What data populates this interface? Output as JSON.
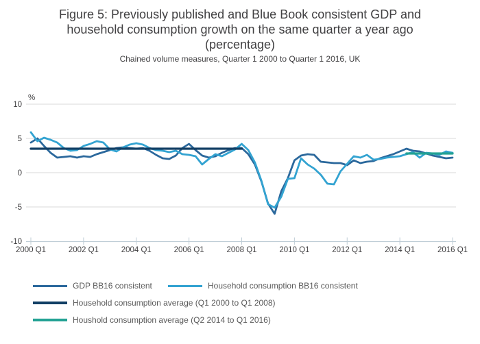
{
  "chart_data": {
    "type": "line",
    "title": "Figure 5: Previously published and Blue Book consistent GDP and household consumption growth on the same quarter a year ago (percentage)",
    "title_lines": [
      "Figure 5: Previously published and Blue Book consistent GDP and",
      "household consumption growth on the same quarter a year ago",
      "(percentage)"
    ],
    "subtitle": "Chained volume measures, Quarter 1 2000 to Quarter 1 2016, UK",
    "unit_label": "%",
    "x_start": "2000 Q1",
    "x_end": "2016 Q1",
    "x_tick_labels": [
      "2000 Q1",
      "2002 Q1",
      "2004 Q1",
      "2006 Q1",
      "2008 Q1",
      "2010 Q1",
      "2012 Q1",
      "2014 Q1",
      "2016 Q1"
    ],
    "y_tick_labels": [
      "10",
      "5",
      "0",
      "-5",
      "-10"
    ],
    "y_ticks": [
      10,
      5,
      0,
      -5,
      -10
    ],
    "ylim": [
      -10,
      10
    ],
    "grid": true,
    "legend_position": "bottom-left",
    "colors": {
      "grid": "#d9d9d9",
      "axis": "#bfcdd6",
      "text_dark": "#414042",
      "text_gray": "#595959"
    },
    "series": [
      {
        "key": "gdp-bb16-line",
        "name": "GDP BB16 consistent",
        "color": "#2b689c",
        "start_quarter": "2000 Q1",
        "values": [
          4.4,
          5.0,
          3.9,
          2.9,
          2.2,
          2.3,
          2.4,
          2.2,
          2.4,
          2.3,
          2.7,
          3.0,
          3.3,
          3.6,
          3.7,
          3.6,
          3.5,
          3.6,
          3.2,
          2.6,
          2.1,
          2.0,
          2.5,
          3.6,
          4.2,
          3.3,
          2.5,
          2.2,
          2.4,
          2.9,
          3.3,
          3.6,
          3.6,
          2.7,
          1.2,
          -1.3,
          -4.5,
          -6.0,
          -2.7,
          -0.8,
          1.8,
          2.5,
          2.7,
          2.6,
          1.6,
          1.5,
          1.4,
          1.4,
          1.1,
          1.8,
          1.4,
          1.6,
          1.7,
          2.1,
          2.4,
          2.7,
          3.1,
          3.5,
          3.2,
          3.1,
          2.8,
          2.5,
          2.3,
          2.1,
          2.2
        ]
      },
      {
        "key": "household-consumption-bb16-line",
        "name": "Household consumption BB16 consistent",
        "color": "#33a3d1",
        "start_quarter": "2000 Q1",
        "values": [
          5.9,
          4.6,
          5.1,
          4.8,
          4.4,
          3.6,
          3.2,
          3.3,
          3.9,
          4.2,
          4.6,
          4.4,
          3.4,
          3.1,
          3.7,
          4.1,
          4.3,
          4.1,
          3.6,
          3.3,
          3.2,
          3.0,
          3.2,
          2.7,
          2.6,
          2.4,
          1.2,
          2.0,
          2.7,
          2.4,
          2.9,
          3.4,
          4.2,
          3.3,
          1.5,
          -1.2,
          -4.6,
          -5.1,
          -3.5,
          -0.9,
          -0.8,
          2.1,
          1.2,
          0.6,
          -0.3,
          -1.6,
          -1.7,
          0.2,
          1.3,
          2.4,
          2.2,
          2.6,
          1.9,
          2.0,
          2.2,
          2.3,
          2.4,
          2.7,
          3.0,
          2.2,
          2.9,
          2.8,
          2.6,
          3.1,
          2.9
        ]
      },
      {
        "key": "household-avg-2000-2008-line",
        "name": "Household consumption average (Q1 2000 to Q1 2008)",
        "color": "#113e64",
        "segment": true,
        "value": 3.5,
        "from_quarter_index": 0,
        "to_quarter_index": 32,
        "from_label": "Q1 2000",
        "to_label": "Q1 2008"
      },
      {
        "key": "household-avg-2014-2016-line",
        "name": "Houshold consumption average (Q2 2014 to Q1 2016)",
        "color": "#23a294",
        "segment": true,
        "value": 2.8,
        "from_quarter_index": 57,
        "to_quarter_index": 64,
        "from_label": "Q2 2014",
        "to_label": "Q1 2016"
      }
    ]
  }
}
